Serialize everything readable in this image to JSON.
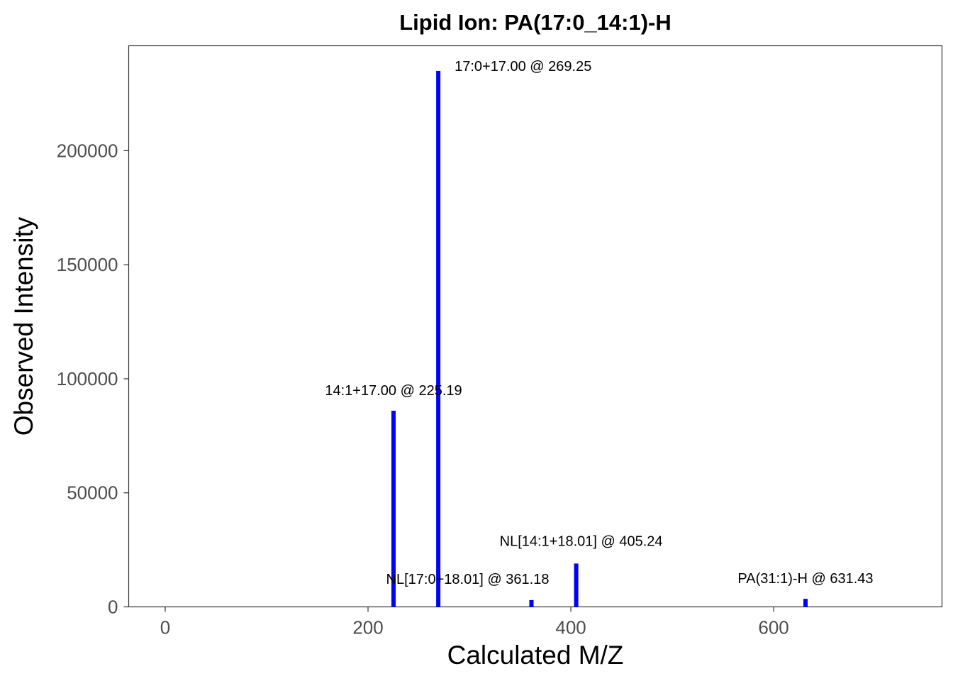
{
  "chart_data": {
    "type": "bar",
    "title": "Lipid Ion: PA(17:0_14:1)-H",
    "xlabel": "Calculated M/Z",
    "ylabel": "Observed Intensity",
    "xlim": [
      -36,
      766
    ],
    "ylim": [
      0,
      246000
    ],
    "x_ticks": [
      0,
      200,
      400,
      600
    ],
    "x_tick_labels": [
      "0",
      "200",
      "400",
      "600"
    ],
    "y_ticks": [
      0,
      50000,
      100000,
      150000,
      200000
    ],
    "y_tick_labels": [
      "0",
      "50000",
      "100000",
      "150000",
      "200000"
    ],
    "grid": false,
    "bar_color": "#0000ff",
    "peaks": [
      {
        "mz": 225.19,
        "intensity": 86000,
        "label": "14:1+17.00 @ 225.19"
      },
      {
        "mz": 269.25,
        "intensity": 235000,
        "label": "17:0+17.00 @ 269.25"
      },
      {
        "mz": 361.18,
        "intensity": 3000,
        "label": "NL[17:0+18.01] @ 361.18"
      },
      {
        "mz": 405.24,
        "intensity": 19000,
        "label": "NL[14:1+18.01] @ 405.24"
      },
      {
        "mz": 631.43,
        "intensity": 3500,
        "label": "PA(31:1)-H @ 631.43"
      }
    ]
  }
}
